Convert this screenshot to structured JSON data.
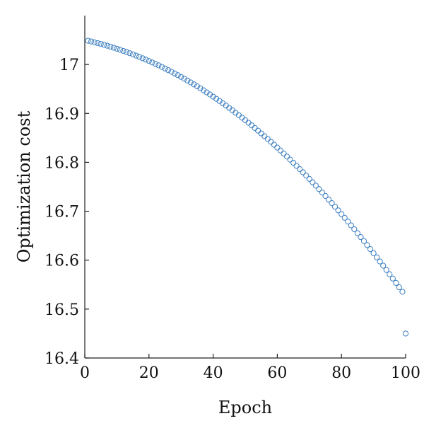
{
  "chart_data": {
    "type": "scatter",
    "title": "",
    "xlabel": "Epoch",
    "ylabel": "Optimization cost",
    "xlim": [
      0,
      100
    ],
    "ylim": [
      16.4,
      17.1
    ],
    "xticks": [
      0,
      20,
      40,
      60,
      80,
      100
    ],
    "yticks": [
      16.4,
      16.5,
      16.6,
      16.7,
      16.8,
      16.9,
      17
    ],
    "ytick_labels": [
      "16.4",
      "16.5",
      "16.6",
      "16.7",
      "16.8",
      "16.9",
      "17"
    ],
    "grid": false,
    "marker": "open-circle",
    "color": "#3d7fc1",
    "series": [
      {
        "x": [
          1,
          2,
          3,
          4,
          5,
          6,
          7,
          8,
          9,
          10,
          11,
          12,
          13,
          14,
          15,
          16,
          17,
          18,
          19,
          20,
          21,
          22,
          23,
          24,
          25,
          26,
          27,
          28,
          29,
          30,
          31,
          32,
          33,
          34,
          35,
          36,
          37,
          38,
          39,
          40,
          41,
          42,
          43,
          44,
          45,
          46,
          47,
          48,
          49,
          50,
          51,
          52,
          53,
          54,
          55,
          56,
          57,
          58,
          59,
          60,
          61,
          62,
          63,
          64,
          65,
          66,
          67,
          68,
          69,
          70,
          71,
          72,
          73,
          74,
          75,
          76,
          77,
          78,
          79,
          80,
          81,
          82,
          83,
          84,
          85,
          86,
          87,
          88,
          89,
          90,
          91,
          92,
          93,
          94,
          95,
          96,
          97,
          98,
          99,
          100
        ],
        "y": [
          17.0485,
          17.047,
          17.0454,
          17.0437,
          17.042,
          17.0402,
          17.0383,
          17.0364,
          17.0343,
          17.0322,
          17.0301,
          17.0278,
          17.0255,
          17.0231,
          17.0206,
          17.0181,
          17.0155,
          17.0128,
          17.01,
          17.0072,
          17.0043,
          17.0013,
          16.9982,
          16.9951,
          16.9918,
          16.9885,
          16.9852,
          16.9817,
          16.9782,
          16.9746,
          16.9709,
          16.9671,
          16.9633,
          16.9594,
          16.9554,
          16.9513,
          16.9472,
          16.943,
          16.9387,
          16.9343,
          16.9298,
          16.9253,
          16.9207,
          16.916,
          16.9112,
          16.9064,
          16.9014,
          16.8964,
          16.8913,
          16.8862,
          16.8809,
          16.8756,
          16.8702,
          16.8647,
          16.8591,
          16.8535,
          16.8478,
          16.842,
          16.8361,
          16.8301,
          16.8241,
          16.818,
          16.8118,
          16.8055,
          16.7991,
          16.7927,
          16.7862,
          16.7796,
          16.7729,
          16.7661,
          16.7593,
          16.7524,
          16.7454,
          16.7383,
          16.7312,
          16.7239,
          16.7166,
          16.7092,
          16.7018,
          16.6942,
          16.6866,
          16.6789,
          16.6711,
          16.6632,
          16.6552,
          16.6472,
          16.6391,
          16.6309,
          16.6226,
          16.6142,
          16.6058,
          16.5973,
          16.5887,
          16.58,
          16.5712,
          16.5624,
          16.5535,
          16.5445,
          16.5354,
          16.45
        ]
      }
    ]
  }
}
